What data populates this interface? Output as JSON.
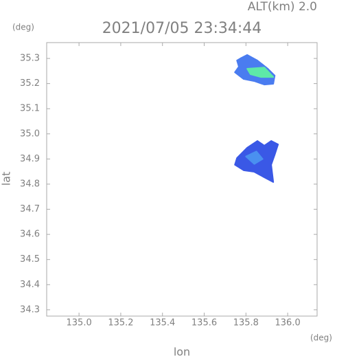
{
  "chart_data": {
    "type": "radar",
    "title": "2021/07/05 23:34:44",
    "subtitle": "ALT(km) 2.0",
    "x_label": "lon",
    "y_label": "lat",
    "x_unit": "(deg)",
    "y_unit": "(deg)",
    "xlim": [
      134.845,
      136.141
    ],
    "ylim": [
      34.275,
      35.363
    ],
    "xticks": [
      {
        "value": 135.0,
        "label": "135.0"
      },
      135.2,
      135.4,
      135.6,
      135.8,
      {
        "value": 136.0,
        "label": "136.0"
      }
    ],
    "yticks": [
      34.3,
      34.4,
      34.5,
      34.6,
      34.7,
      34.8,
      34.9,
      {
        "value": 35.0,
        "label": "35.0"
      },
      35.1,
      35.2,
      35.3
    ],
    "regions": [
      {
        "color": "#4a7cf0",
        "lon": [
          135.773,
          135.806,
          135.855,
          135.905,
          135.938,
          135.931,
          135.888,
          135.839,
          135.789,
          135.747,
          135.766,
          135.757
        ],
        "lat": [
          35.3,
          35.314,
          35.292,
          35.259,
          35.232,
          35.199,
          35.196,
          35.21,
          35.218,
          35.245,
          35.267,
          35.292
        ]
      },
      {
        "color": "#5ee8a8",
        "lon": [
          135.806,
          135.888,
          135.931,
          135.872,
          135.822
        ],
        "lat": [
          35.259,
          35.264,
          35.226,
          35.226,
          35.237
        ]
      },
      {
        "color": "#3a58e6",
        "lon": [
          135.757,
          135.806,
          135.855,
          135.888,
          135.921,
          135.954,
          135.938,
          135.921,
          135.931,
          135.888,
          135.839,
          135.789,
          135.747
        ],
        "lat": [
          34.904,
          34.945,
          34.972,
          34.953,
          34.972,
          34.958,
          34.917,
          34.877,
          34.808,
          34.827,
          34.849,
          34.855,
          34.877
        ]
      },
      {
        "color": "#4a90f0",
        "lon": [
          135.8,
          135.85,
          135.88,
          135.84
        ],
        "lat": [
          34.91,
          34.93,
          34.9,
          34.88
        ]
      }
    ]
  }
}
